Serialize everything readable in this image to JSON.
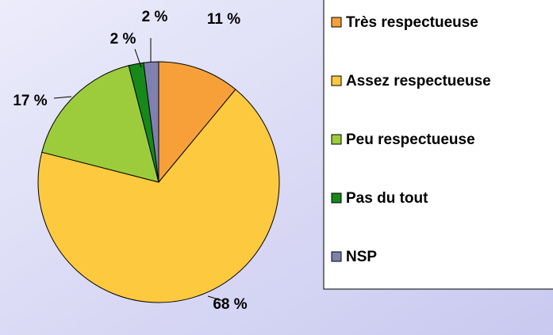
{
  "chart_data": {
    "type": "pie",
    "categories": [
      "Très respectueuse",
      "Assez respectueuse",
      "Peu respectueuse",
      "Pas du tout",
      "NSP"
    ],
    "values": [
      11,
      68,
      17,
      2,
      2
    ],
    "value_labels": [
      "11 %",
      "68 %",
      "17 %",
      "2 %",
      "2 %"
    ],
    "colors": [
      "#f7a03a",
      "#fdc93f",
      "#9ccc3c",
      "#16891a",
      "#7f80b0"
    ],
    "legend": "right"
  }
}
